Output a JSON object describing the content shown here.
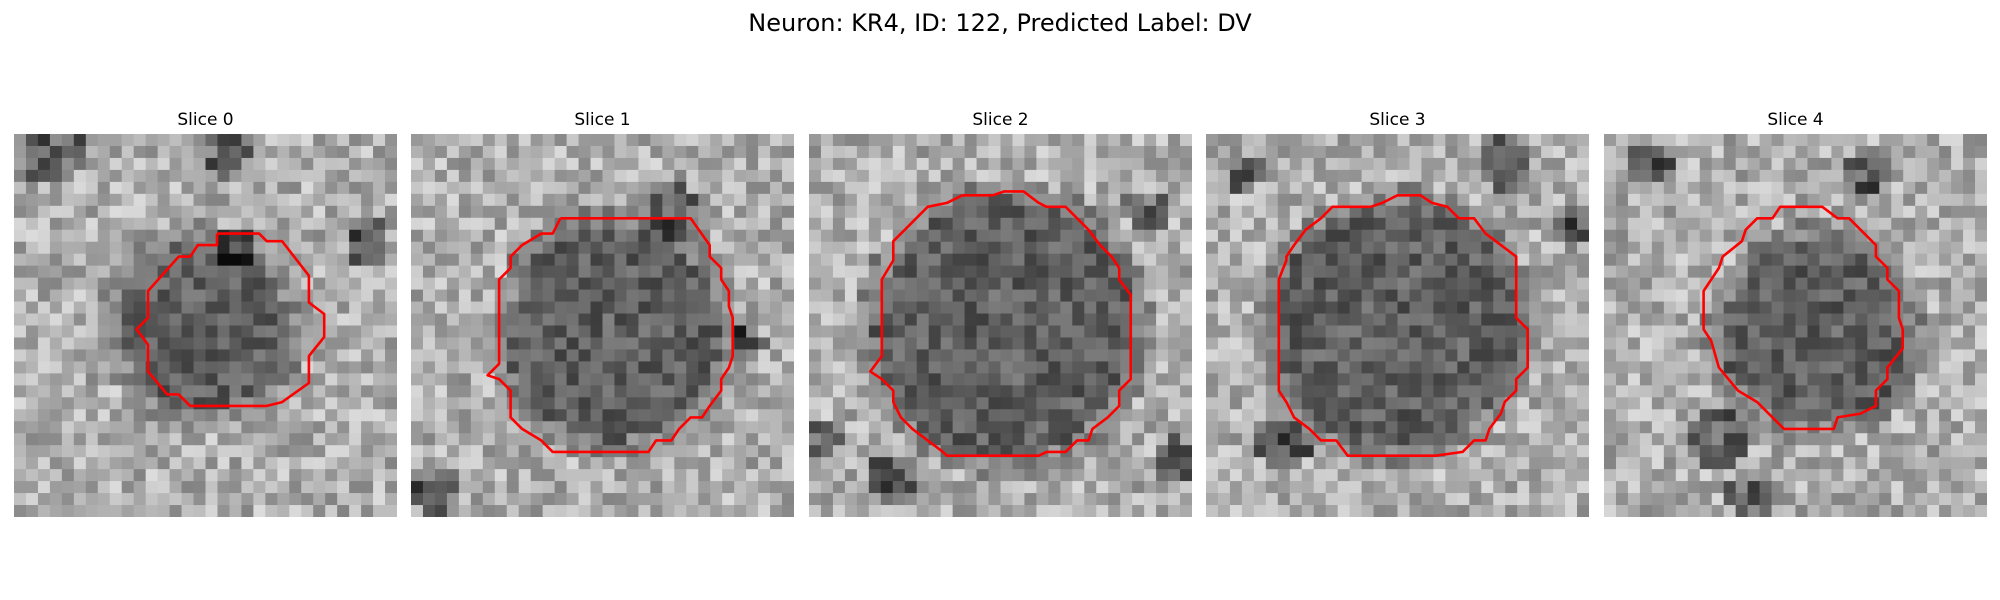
{
  "figure": {
    "title": "Neuron: KR4, ID: 122, Predicted Label: DV"
  },
  "contour_color": "#ff0000",
  "colormap": "gray",
  "panels": [
    {
      "label": "Slice 0",
      "seed": 11,
      "blob": [
        0.49,
        0.5,
        0.22
      ],
      "dark": [
        [
          0.55,
          0.05,
          0.06
        ],
        [
          0.58,
          0.3,
          0.05
        ],
        [
          0.92,
          0.28,
          0.06
        ],
        [
          0.1,
          0.05,
          0.08
        ]
      ],
      "contour": [
        [
          0.53,
          0.26
        ],
        [
          0.64,
          0.26
        ],
        [
          0.66,
          0.28
        ],
        [
          0.7,
          0.28
        ],
        [
          0.77,
          0.37
        ],
        [
          0.77,
          0.44
        ],
        [
          0.81,
          0.47
        ],
        [
          0.81,
          0.53
        ],
        [
          0.77,
          0.58
        ],
        [
          0.77,
          0.65
        ],
        [
          0.7,
          0.7
        ],
        [
          0.66,
          0.71
        ],
        [
          0.46,
          0.71
        ],
        [
          0.43,
          0.68
        ],
        [
          0.4,
          0.68
        ],
        [
          0.35,
          0.62
        ],
        [
          0.35,
          0.55
        ],
        [
          0.32,
          0.51
        ],
        [
          0.35,
          0.48
        ],
        [
          0.35,
          0.41
        ],
        [
          0.43,
          0.32
        ],
        [
          0.46,
          0.32
        ],
        [
          0.48,
          0.29
        ],
        [
          0.53,
          0.29
        ],
        [
          0.53,
          0.26
        ]
      ]
    },
    {
      "label": "Slice 1",
      "seed": 23,
      "blob": [
        0.53,
        0.52,
        0.28
      ],
      "dark": [
        [
          0.68,
          0.2,
          0.07
        ],
        [
          0.07,
          0.93,
          0.06
        ],
        [
          0.88,
          0.55,
          0.05
        ]
      ],
      "contour": [
        [
          0.39,
          0.22
        ],
        [
          0.73,
          0.22
        ],
        [
          0.78,
          0.29
        ],
        [
          0.78,
          0.32
        ],
        [
          0.81,
          0.35
        ],
        [
          0.81,
          0.38
        ],
        [
          0.83,
          0.41
        ],
        [
          0.83,
          0.45
        ],
        [
          0.84,
          0.48
        ],
        [
          0.84,
          0.58
        ],
        [
          0.83,
          0.61
        ],
        [
          0.81,
          0.64
        ],
        [
          0.81,
          0.67
        ],
        [
          0.78,
          0.71
        ],
        [
          0.76,
          0.74
        ],
        [
          0.73,
          0.74
        ],
        [
          0.7,
          0.77
        ],
        [
          0.68,
          0.8
        ],
        [
          0.64,
          0.8
        ],
        [
          0.62,
          0.83
        ],
        [
          0.37,
          0.83
        ],
        [
          0.34,
          0.8
        ],
        [
          0.29,
          0.77
        ],
        [
          0.26,
          0.74
        ],
        [
          0.26,
          0.67
        ],
        [
          0.23,
          0.64
        ],
        [
          0.2,
          0.63
        ],
        [
          0.23,
          0.6
        ],
        [
          0.23,
          0.48
        ],
        [
          0.23,
          0.38
        ],
        [
          0.26,
          0.35
        ],
        [
          0.26,
          0.32
        ],
        [
          0.29,
          0.29
        ],
        [
          0.34,
          0.26
        ],
        [
          0.37,
          0.26
        ],
        [
          0.39,
          0.22
        ]
      ]
    },
    {
      "label": "Slice 2",
      "seed": 37,
      "blob": [
        0.51,
        0.51,
        0.34
      ],
      "dark": [
        [
          0.22,
          0.9,
          0.07
        ],
        [
          0.95,
          0.85,
          0.06
        ],
        [
          0.88,
          0.2,
          0.06
        ],
        [
          0.03,
          0.8,
          0.05
        ]
      ],
      "contour": [
        [
          0.4,
          0.16
        ],
        [
          0.48,
          0.16
        ],
        [
          0.51,
          0.15
        ],
        [
          0.56,
          0.15
        ],
        [
          0.6,
          0.18
        ],
        [
          0.62,
          0.19
        ],
        [
          0.67,
          0.19
        ],
        [
          0.7,
          0.22
        ],
        [
          0.73,
          0.25
        ],
        [
          0.76,
          0.29
        ],
        [
          0.79,
          0.32
        ],
        [
          0.81,
          0.35
        ],
        [
          0.81,
          0.38
        ],
        [
          0.84,
          0.42
        ],
        [
          0.84,
          0.64
        ],
        [
          0.81,
          0.67
        ],
        [
          0.81,
          0.71
        ],
        [
          0.78,
          0.74
        ],
        [
          0.74,
          0.77
        ],
        [
          0.73,
          0.8
        ],
        [
          0.7,
          0.8
        ],
        [
          0.67,
          0.83
        ],
        [
          0.62,
          0.83
        ],
        [
          0.6,
          0.84
        ],
        [
          0.36,
          0.84
        ],
        [
          0.35,
          0.83
        ],
        [
          0.31,
          0.8
        ],
        [
          0.27,
          0.77
        ],
        [
          0.24,
          0.74
        ],
        [
          0.22,
          0.7
        ],
        [
          0.22,
          0.67
        ],
        [
          0.19,
          0.64
        ],
        [
          0.16,
          0.62
        ],
        [
          0.19,
          0.58
        ],
        [
          0.19,
          0.45
        ],
        [
          0.19,
          0.38
        ],
        [
          0.22,
          0.33
        ],
        [
          0.22,
          0.28
        ],
        [
          0.25,
          0.25
        ],
        [
          0.28,
          0.22
        ],
        [
          0.31,
          0.19
        ],
        [
          0.36,
          0.18
        ],
        [
          0.4,
          0.16
        ]
      ]
    },
    {
      "label": "Slice 3",
      "seed": 53,
      "blob": [
        0.5,
        0.5,
        0.32
      ],
      "dark": [
        [
          0.78,
          0.08,
          0.07
        ],
        [
          0.2,
          0.82,
          0.07
        ],
        [
          0.95,
          0.25,
          0.05
        ],
        [
          0.1,
          0.1,
          0.05
        ]
      ],
      "contour": [
        [
          0.43,
          0.19
        ],
        [
          0.46,
          0.18
        ],
        [
          0.5,
          0.16
        ],
        [
          0.56,
          0.16
        ],
        [
          0.59,
          0.18
        ],
        [
          0.63,
          0.19
        ],
        [
          0.66,
          0.22
        ],
        [
          0.7,
          0.22
        ],
        [
          0.73,
          0.26
        ],
        [
          0.77,
          0.29
        ],
        [
          0.81,
          0.32
        ],
        [
          0.81,
          0.48
        ],
        [
          0.84,
          0.51
        ],
        [
          0.84,
          0.61
        ],
        [
          0.81,
          0.64
        ],
        [
          0.81,
          0.67
        ],
        [
          0.78,
          0.7
        ],
        [
          0.77,
          0.73
        ],
        [
          0.74,
          0.77
        ],
        [
          0.73,
          0.8
        ],
        [
          0.7,
          0.8
        ],
        [
          0.67,
          0.83
        ],
        [
          0.6,
          0.84
        ],
        [
          0.37,
          0.84
        ],
        [
          0.34,
          0.8
        ],
        [
          0.3,
          0.8
        ],
        [
          0.27,
          0.77
        ],
        [
          0.23,
          0.74
        ],
        [
          0.21,
          0.7
        ],
        [
          0.19,
          0.67
        ],
        [
          0.19,
          0.61
        ],
        [
          0.19,
          0.45
        ],
        [
          0.19,
          0.38
        ],
        [
          0.21,
          0.33
        ],
        [
          0.21,
          0.32
        ],
        [
          0.23,
          0.29
        ],
        [
          0.26,
          0.25
        ],
        [
          0.3,
          0.22
        ],
        [
          0.33,
          0.19
        ],
        [
          0.37,
          0.19
        ],
        [
          0.43,
          0.19
        ]
      ]
    },
    {
      "label": "Slice 4",
      "seed": 71,
      "blob": [
        0.55,
        0.52,
        0.24
      ],
      "dark": [
        [
          0.3,
          0.8,
          0.08
        ],
        [
          0.38,
          0.95,
          0.06
        ],
        [
          0.68,
          0.1,
          0.06
        ],
        [
          0.12,
          0.08,
          0.06
        ]
      ],
      "contour": [
        [
          0.5,
          0.19
        ],
        [
          0.57,
          0.19
        ],
        [
          0.61,
          0.22
        ],
        [
          0.64,
          0.22
        ],
        [
          0.67,
          0.25
        ],
        [
          0.71,
          0.29
        ],
        [
          0.71,
          0.32
        ],
        [
          0.74,
          0.35
        ],
        [
          0.74,
          0.38
        ],
        [
          0.77,
          0.41
        ],
        [
          0.77,
          0.48
        ],
        [
          0.78,
          0.51
        ],
        [
          0.78,
          0.56
        ],
        [
          0.74,
          0.61
        ],
        [
          0.74,
          0.64
        ],
        [
          0.71,
          0.67
        ],
        [
          0.71,
          0.71
        ],
        [
          0.67,
          0.73
        ],
        [
          0.61,
          0.74
        ],
        [
          0.6,
          0.77
        ],
        [
          0.47,
          0.77
        ],
        [
          0.44,
          0.74
        ],
        [
          0.4,
          0.7
        ],
        [
          0.35,
          0.67
        ],
        [
          0.3,
          0.61
        ],
        [
          0.28,
          0.54
        ],
        [
          0.26,
          0.51
        ],
        [
          0.26,
          0.41
        ],
        [
          0.3,
          0.35
        ],
        [
          0.31,
          0.32
        ],
        [
          0.36,
          0.28
        ],
        [
          0.37,
          0.25
        ],
        [
          0.4,
          0.22
        ],
        [
          0.44,
          0.22
        ],
        [
          0.46,
          0.19
        ],
        [
          0.5,
          0.19
        ]
      ]
    }
  ]
}
